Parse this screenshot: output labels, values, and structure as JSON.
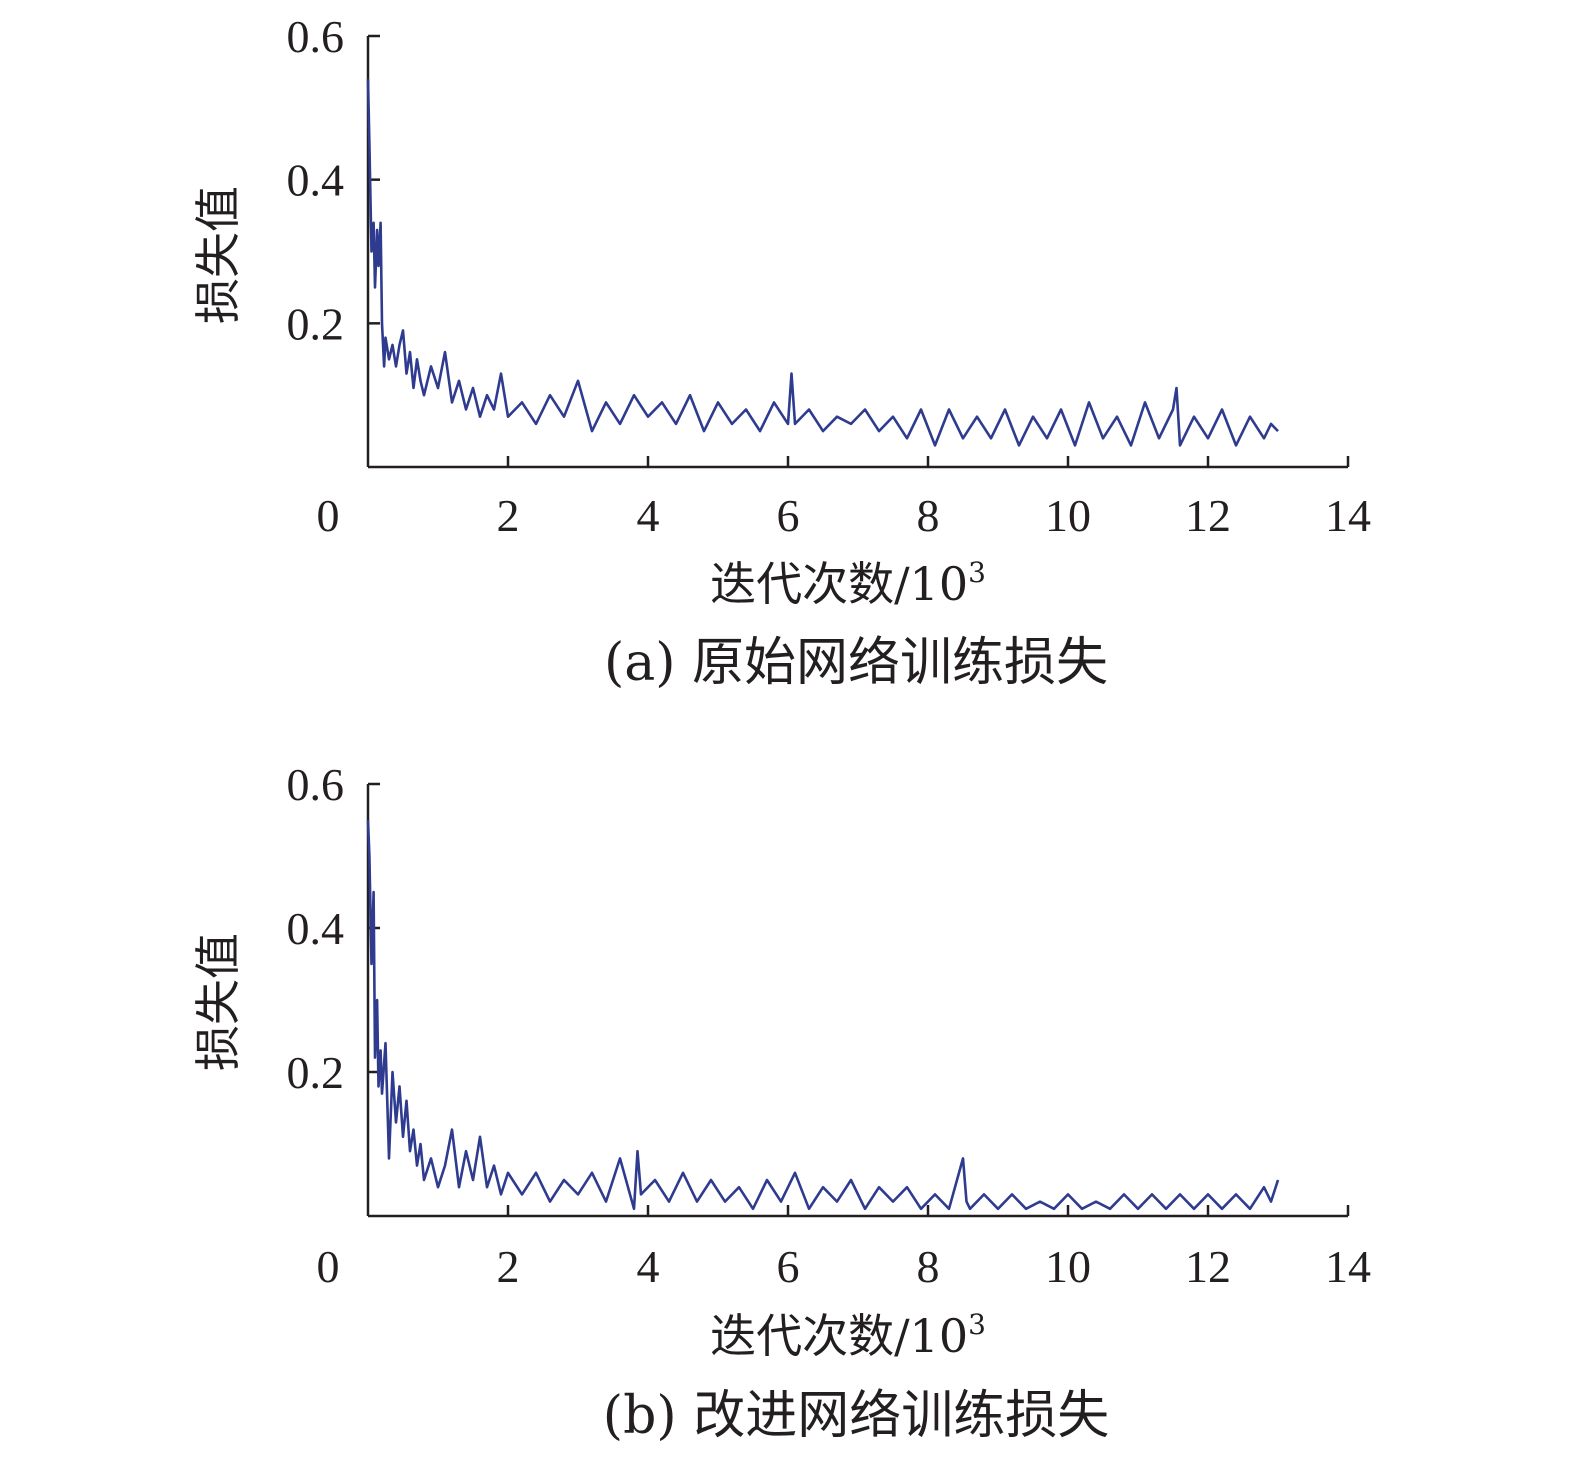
{
  "chart_data": [
    {
      "type": "line",
      "caption": "(a) 原始网络训练损失",
      "xlabel": "迭代次数/10",
      "xlabel_sup": "3",
      "ylabel": "损失值",
      "xlim": [
        0,
        14
      ],
      "ylim": [
        0,
        0.6
      ],
      "xticks": [
        0,
        2,
        4,
        6,
        8,
        10,
        12,
        14
      ],
      "yticks": [
        0.2,
        0.4,
        0.6
      ],
      "xtick_labels": [
        "0",
        "2",
        "4",
        "6",
        "8",
        "10",
        "12",
        "14"
      ],
      "ytick_labels": [
        "0.2",
        "0.4",
        "0.6"
      ],
      "grid": false,
      "series": [
        {
          "color": "#2e3b8f",
          "x": [
            0,
            0.02,
            0.05,
            0.08,
            0.1,
            0.13,
            0.15,
            0.18,
            0.2,
            0.23,
            0.25,
            0.3,
            0.35,
            0.4,
            0.45,
            0.5,
            0.55,
            0.6,
            0.65,
            0.7,
            0.75,
            0.8,
            0.9,
            1.0,
            1.1,
            1.2,
            1.3,
            1.4,
            1.5,
            1.6,
            1.7,
            1.8,
            1.9,
            2.0,
            2.2,
            2.4,
            2.6,
            2.8,
            3.0,
            3.2,
            3.4,
            3.6,
            3.8,
            4.0,
            4.2,
            4.4,
            4.6,
            4.8,
            5.0,
            5.2,
            5.4,
            5.6,
            5.8,
            6.0,
            6.05,
            6.1,
            6.3,
            6.5,
            6.7,
            6.9,
            7.1,
            7.3,
            7.5,
            7.7,
            7.9,
            8.1,
            8.3,
            8.5,
            8.7,
            8.9,
            9.1,
            9.3,
            9.5,
            9.7,
            9.9,
            10.1,
            10.3,
            10.5,
            10.7,
            10.9,
            11.1,
            11.3,
            11.5,
            11.55,
            11.6,
            11.8,
            12.0,
            12.2,
            12.4,
            12.6,
            12.8,
            12.9,
            13.0
          ],
          "y": [
            0.54,
            0.45,
            0.3,
            0.34,
            0.25,
            0.33,
            0.28,
            0.34,
            0.2,
            0.14,
            0.18,
            0.15,
            0.17,
            0.14,
            0.17,
            0.19,
            0.13,
            0.16,
            0.11,
            0.15,
            0.12,
            0.1,
            0.14,
            0.11,
            0.16,
            0.09,
            0.12,
            0.08,
            0.11,
            0.07,
            0.1,
            0.08,
            0.13,
            0.07,
            0.09,
            0.06,
            0.1,
            0.07,
            0.12,
            0.05,
            0.09,
            0.06,
            0.1,
            0.07,
            0.09,
            0.06,
            0.1,
            0.05,
            0.09,
            0.06,
            0.08,
            0.05,
            0.09,
            0.06,
            0.13,
            0.06,
            0.08,
            0.05,
            0.07,
            0.06,
            0.08,
            0.05,
            0.07,
            0.04,
            0.08,
            0.03,
            0.08,
            0.04,
            0.07,
            0.04,
            0.08,
            0.03,
            0.07,
            0.04,
            0.08,
            0.03,
            0.09,
            0.04,
            0.07,
            0.03,
            0.09,
            0.04,
            0.08,
            0.11,
            0.03,
            0.07,
            0.04,
            0.08,
            0.03,
            0.07,
            0.04,
            0.06,
            0.05
          ]
        }
      ]
    },
    {
      "type": "line",
      "caption": "(b) 改进网络训练损失",
      "xlabel": "迭代次数/10",
      "xlabel_sup": "3",
      "ylabel": "损失值",
      "xlim": [
        0,
        14
      ],
      "ylim": [
        0,
        0.6
      ],
      "xticks": [
        0,
        2,
        4,
        6,
        8,
        10,
        12,
        14
      ],
      "yticks": [
        0.2,
        0.4,
        0.6
      ],
      "xtick_labels": [
        "0",
        "2",
        "4",
        "6",
        "8",
        "10",
        "12",
        "14"
      ],
      "ytick_labels": [
        "0.2",
        "0.4",
        "0.6"
      ],
      "grid": false,
      "series": [
        {
          "color": "#2e3b8f",
          "x": [
            0,
            0.02,
            0.05,
            0.08,
            0.1,
            0.13,
            0.15,
            0.18,
            0.2,
            0.25,
            0.3,
            0.35,
            0.4,
            0.45,
            0.5,
            0.55,
            0.6,
            0.65,
            0.7,
            0.75,
            0.8,
            0.9,
            1.0,
            1.1,
            1.2,
            1.3,
            1.4,
            1.5,
            1.6,
            1.7,
            1.8,
            1.9,
            2.0,
            2.2,
            2.4,
            2.6,
            2.8,
            3.0,
            3.2,
            3.4,
            3.6,
            3.8,
            3.85,
            3.9,
            4.1,
            4.3,
            4.5,
            4.7,
            4.9,
            5.1,
            5.3,
            5.5,
            5.7,
            5.9,
            6.1,
            6.3,
            6.5,
            6.7,
            6.9,
            7.1,
            7.3,
            7.5,
            7.7,
            7.9,
            8.1,
            8.3,
            8.5,
            8.55,
            8.6,
            8.8,
            9.0,
            9.2,
            9.4,
            9.6,
            9.8,
            10.0,
            10.2,
            10.4,
            10.6,
            10.8,
            11.0,
            11.2,
            11.4,
            11.6,
            11.8,
            12.0,
            12.2,
            12.4,
            12.6,
            12.8,
            12.9,
            13.0
          ],
          "y": [
            0.55,
            0.5,
            0.35,
            0.45,
            0.22,
            0.3,
            0.18,
            0.23,
            0.17,
            0.24,
            0.08,
            0.2,
            0.13,
            0.18,
            0.11,
            0.16,
            0.09,
            0.12,
            0.07,
            0.1,
            0.05,
            0.08,
            0.04,
            0.07,
            0.12,
            0.04,
            0.09,
            0.05,
            0.11,
            0.04,
            0.07,
            0.03,
            0.06,
            0.03,
            0.06,
            0.02,
            0.05,
            0.03,
            0.06,
            0.02,
            0.08,
            0.01,
            0.09,
            0.03,
            0.05,
            0.02,
            0.06,
            0.02,
            0.05,
            0.02,
            0.04,
            0.01,
            0.05,
            0.02,
            0.06,
            0.01,
            0.04,
            0.02,
            0.05,
            0.01,
            0.04,
            0.02,
            0.04,
            0.01,
            0.03,
            0.01,
            0.08,
            0.02,
            0.01,
            0.03,
            0.01,
            0.03,
            0.01,
            0.02,
            0.01,
            0.03,
            0.01,
            0.02,
            0.01,
            0.03,
            0.01,
            0.03,
            0.01,
            0.03,
            0.01,
            0.03,
            0.01,
            0.03,
            0.01,
            0.04,
            0.02,
            0.05
          ]
        }
      ]
    }
  ]
}
